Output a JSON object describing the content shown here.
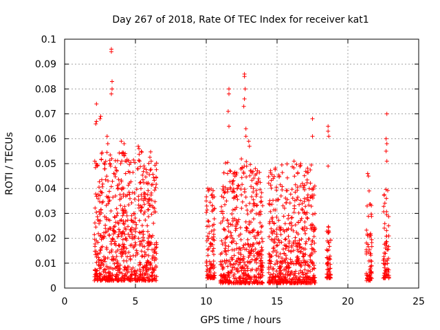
{
  "chart_data": {
    "type": "scatter",
    "title": "Day 267 of 2018, Rate Of TEC Index for receiver kat1",
    "xlabel": "GPS time / hours",
    "ylabel": "ROTI / TECUs",
    "xlim": [
      0,
      25
    ],
    "ylim": [
      0,
      0.1
    ],
    "xticks": [
      0,
      5,
      10,
      15,
      20,
      25
    ],
    "xtick_labels": [
      "0",
      "5",
      "10",
      "15",
      "20",
      "25"
    ],
    "yticks": [
      0,
      0.01,
      0.02,
      0.03,
      0.04,
      0.05,
      0.06,
      0.07,
      0.08,
      0.09,
      0.1
    ],
    "ytick_labels": [
      "0",
      "0.01",
      "0.02",
      "0.03",
      "0.04",
      "0.05",
      "0.06",
      "0.07",
      "0.08",
      "0.09",
      "0.1"
    ],
    "grid": true,
    "marker": "+",
    "color": "#ff0000",
    "series": [
      {
        "name": "kat1",
        "segments": [
          {
            "x_start": 2.1,
            "x_end": 6.5,
            "y_min": 0.003,
            "y_max": 0.055
          },
          {
            "x_start": 10.0,
            "x_end": 10.6,
            "y_min": 0.004,
            "y_max": 0.04
          },
          {
            "x_start": 11.0,
            "x_end": 14.0,
            "y_min": 0.002,
            "y_max": 0.052
          },
          {
            "x_start": 14.4,
            "x_end": 17.7,
            "y_min": 0.002,
            "y_max": 0.05
          },
          {
            "x_start": 18.5,
            "x_end": 18.8,
            "y_min": 0.004,
            "y_max": 0.025
          },
          {
            "x_start": 21.3,
            "x_end": 21.7,
            "y_min": 0.003,
            "y_max": 0.035
          },
          {
            "x_start": 22.5,
            "x_end": 22.9,
            "y_min": 0.004,
            "y_max": 0.04
          }
        ],
        "highlights": [
          {
            "x": 2.2,
            "y": 0.066
          },
          {
            "x": 2.25,
            "y": 0.067
          },
          {
            "x": 2.25,
            "y": 0.074
          },
          {
            "x": 2.5,
            "y": 0.068
          },
          {
            "x": 2.55,
            "y": 0.069
          },
          {
            "x": 3.0,
            "y": 0.061
          },
          {
            "x": 3.05,
            "y": 0.058
          },
          {
            "x": 3.3,
            "y": 0.095
          },
          {
            "x": 3.3,
            "y": 0.096
          },
          {
            "x": 3.35,
            "y": 0.083
          },
          {
            "x": 3.35,
            "y": 0.08
          },
          {
            "x": 3.3,
            "y": 0.078
          },
          {
            "x": 4.0,
            "y": 0.059
          },
          {
            "x": 4.2,
            "y": 0.058
          },
          {
            "x": 5.2,
            "y": 0.057
          },
          {
            "x": 5.25,
            "y": 0.056
          },
          {
            "x": 10.1,
            "y": 0.04
          },
          {
            "x": 10.15,
            "y": 0.039
          },
          {
            "x": 11.6,
            "y": 0.08
          },
          {
            "x": 11.6,
            "y": 0.078
          },
          {
            "x": 11.55,
            "y": 0.071
          },
          {
            "x": 11.6,
            "y": 0.065
          },
          {
            "x": 12.7,
            "y": 0.086
          },
          {
            "x": 12.7,
            "y": 0.085
          },
          {
            "x": 12.75,
            "y": 0.08
          },
          {
            "x": 12.7,
            "y": 0.076
          },
          {
            "x": 12.65,
            "y": 0.073
          },
          {
            "x": 12.8,
            "y": 0.064
          },
          {
            "x": 12.8,
            "y": 0.061
          },
          {
            "x": 13.0,
            "y": 0.059
          },
          {
            "x": 13.05,
            "y": 0.057
          },
          {
            "x": 16.2,
            "y": 0.051
          },
          {
            "x": 17.5,
            "y": 0.068
          },
          {
            "x": 17.5,
            "y": 0.061
          },
          {
            "x": 18.6,
            "y": 0.065
          },
          {
            "x": 18.6,
            "y": 0.063
          },
          {
            "x": 18.65,
            "y": 0.061
          },
          {
            "x": 18.6,
            "y": 0.049
          },
          {
            "x": 21.4,
            "y": 0.046
          },
          {
            "x": 21.45,
            "y": 0.045
          },
          {
            "x": 21.5,
            "y": 0.039
          },
          {
            "x": 22.75,
            "y": 0.07
          },
          {
            "x": 22.7,
            "y": 0.06
          },
          {
            "x": 22.75,
            "y": 0.058
          },
          {
            "x": 22.7,
            "y": 0.055
          },
          {
            "x": 22.75,
            "y": 0.051
          }
        ]
      }
    ]
  }
}
